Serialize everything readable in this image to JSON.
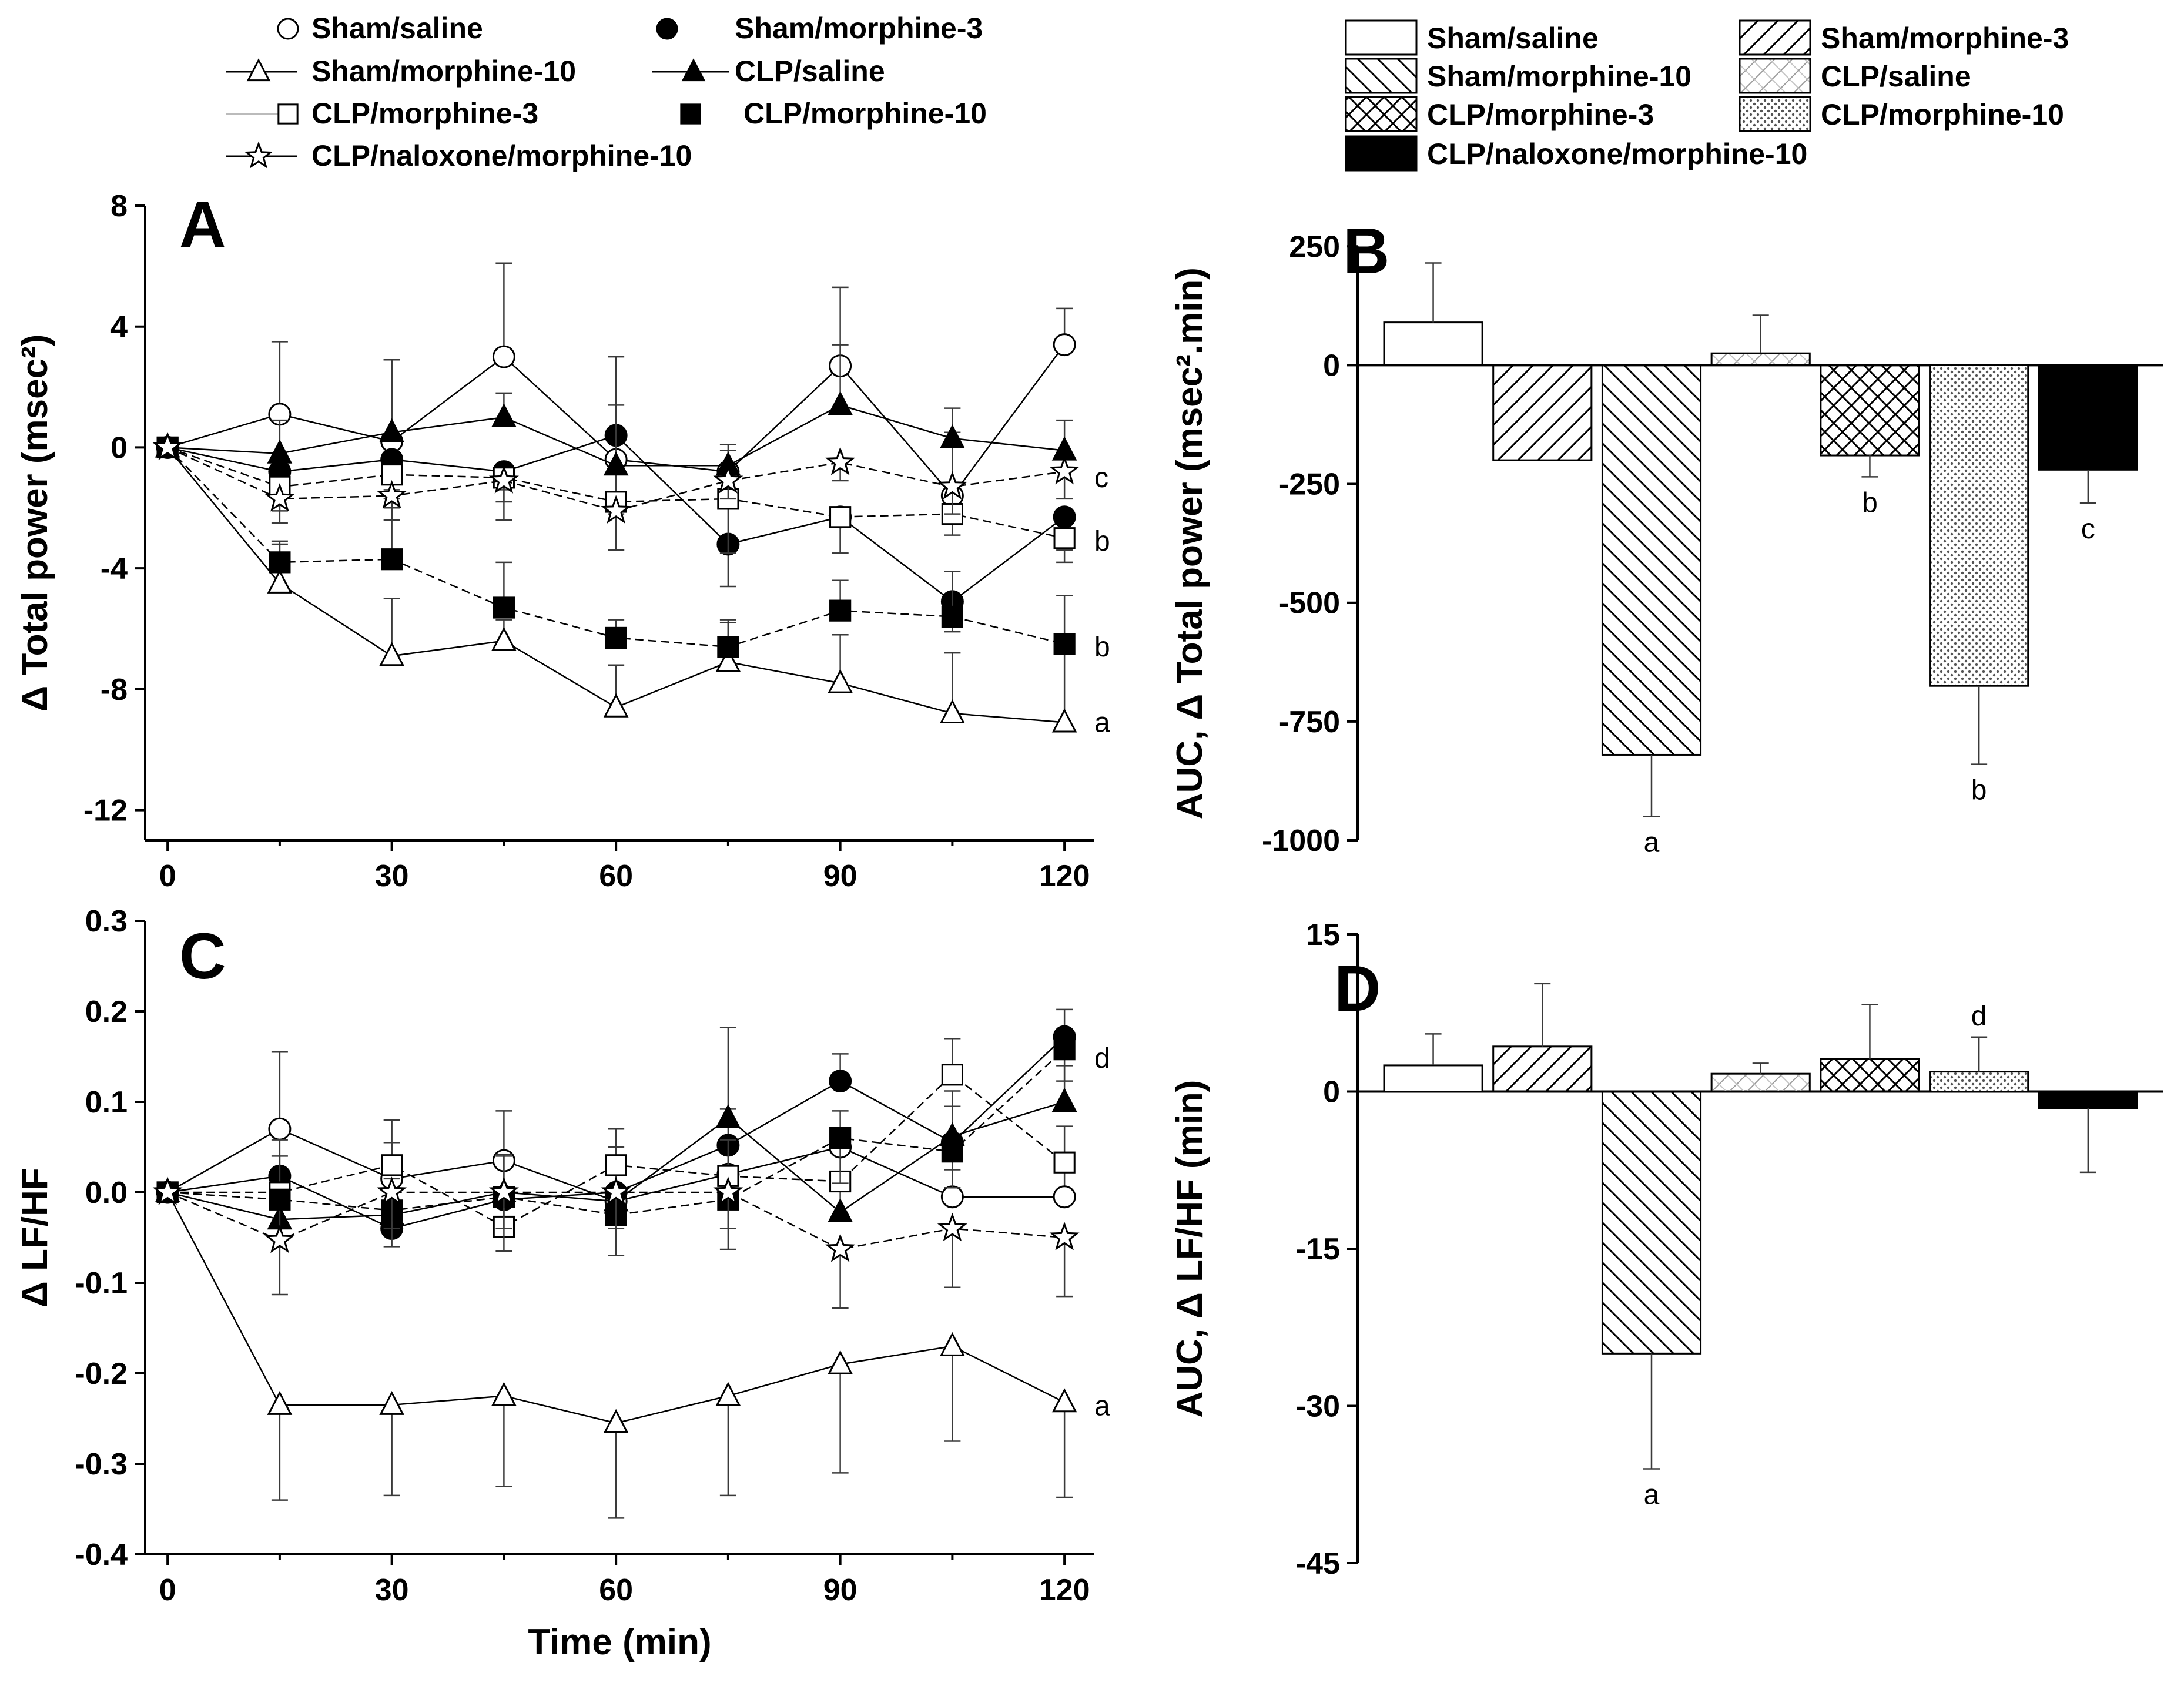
{
  "colors": {
    "ink": "#000000",
    "background": "#ffffff",
    "errorbar": "#3a3a3a"
  },
  "legend_left": {
    "entries": [
      {
        "label": "Sham/saline",
        "marker": "circle-open",
        "dash": "none"
      },
      {
        "label": "Sham/morphine-3",
        "marker": "circle-filled",
        "dash": "none"
      },
      {
        "label": "Sham/morphine-10",
        "marker": "triangle-open",
        "dash": "solid"
      },
      {
        "label": "CLP/saline",
        "marker": "triangle-filled",
        "dash": "solid"
      },
      {
        "label": "CLP/morphine-3",
        "marker": "square-open",
        "dash": "none"
      },
      {
        "label": "CLP/morphine-10",
        "marker": "square-filled",
        "dash": "none"
      },
      {
        "label": "CLP/naloxone/morphine-10",
        "marker": "star-open",
        "dash": "solid"
      }
    ]
  },
  "legend_right": {
    "entries": [
      {
        "label": "Sham/saline",
        "pattern": "none"
      },
      {
        "label": "Sham/morphine-3",
        "pattern": "hatch-fwd"
      },
      {
        "label": "Sham/morphine-10",
        "pattern": "hatch-back"
      },
      {
        "label": "CLP/saline",
        "pattern": "hatch-light"
      },
      {
        "label": "CLP/morphine-3",
        "pattern": "crosshatch"
      },
      {
        "label": "CLP/morphine-10",
        "pattern": "dots"
      },
      {
        "label": "CLP/naloxone/morphine-10",
        "pattern": "solid"
      }
    ]
  },
  "chart_data": [
    {
      "panel": "A",
      "type": "line",
      "xlabel": "",
      "ylabel": "Δ Total power (msec²)",
      "x": [
        0,
        15,
        30,
        45,
        60,
        75,
        90,
        105,
        120
      ],
      "xticks": [
        "0",
        "30",
        "60",
        "90",
        "120"
      ],
      "xtick_values": [
        0,
        30,
        60,
        90,
        120
      ],
      "xlim": [
        -3,
        124
      ],
      "ylim": [
        -13,
        8
      ],
      "yticks": [
        "8",
        "4",
        "0",
        "-4",
        "-8",
        "-12"
      ],
      "ytick_values": [
        8,
        4,
        0,
        -4,
        -8,
        -12
      ],
      "series": [
        {
          "name": "Sham/saline",
          "values": [
            0,
            1.1,
            0.2,
            3.0,
            -0.4,
            -0.8,
            2.7,
            -1.6,
            3.4
          ],
          "err": [
            0,
            2.4,
            2.7,
            3.1,
            3.4,
            0.7,
            2.6,
            2.1,
            1.2
          ],
          "dir": 1
        },
        {
          "name": "Sham/morphine-3",
          "values": [
            0,
            -0.8,
            -0.4,
            -0.8,
            0.4,
            -3.2,
            -2.3,
            -5.1,
            -2.3
          ],
          "err": [
            0,
            0.9,
            1.0,
            0.6,
            2.6,
            1.4,
            1.2,
            1.0,
            1.1
          ],
          "dir": -1
        },
        {
          "name": "Sham/morphine-10",
          "values": [
            0,
            -4.5,
            -6.9,
            -6.4,
            -8.6,
            -7.1,
            -7.8,
            -8.8,
            -9.1
          ],
          "err": [
            0,
            1.3,
            1.9,
            0.7,
            1.4,
            1.3,
            1.6,
            2.0,
            2.7
          ],
          "dir": 1
        },
        {
          "name": "CLP/saline",
          "values": [
            0,
            -0.2,
            0.5,
            1.0,
            -0.6,
            -0.6,
            1.4,
            0.3,
            -0.1
          ],
          "err": [
            0,
            1.1,
            2.4,
            0.8,
            2.0,
            0.7,
            2.0,
            1.0,
            1.0
          ],
          "dir": 1
        },
        {
          "name": "CLP/morphine-3",
          "values": [
            0,
            -1.3,
            -0.9,
            -1.0,
            -1.8,
            -1.7,
            -2.3,
            -2.2,
            -3.0
          ],
          "err": [
            0,
            0.8,
            1.1,
            0.8,
            1.6,
            1.8,
            1.2,
            0.7,
            0.8
          ],
          "dir": -1
        },
        {
          "name": "CLP/morphine-10",
          "values": [
            0,
            -3.8,
            -3.7,
            -5.3,
            -6.3,
            -6.6,
            -5.4,
            -5.6,
            -6.5
          ],
          "err": [
            0,
            0.7,
            2.0,
            1.5,
            0.6,
            0.9,
            1.0,
            1.5,
            1.6
          ],
          "dir": 1
        },
        {
          "name": "CLP/naloxone/morphine-10",
          "values": [
            0,
            -1.7,
            -1.6,
            -1.1,
            -2.1,
            -1.1,
            -0.5,
            -1.3,
            -0.8
          ],
          "err": [
            0,
            0.8,
            0.8,
            1.3,
            1.3,
            0.6,
            0.6,
            0.9,
            0.9
          ],
          "dir": -1
        }
      ],
      "annotations": [
        {
          "text": "c",
          "x": 124,
          "y": -1.0
        },
        {
          "text": "b",
          "x": 124,
          "y": -3.1
        },
        {
          "text": "b",
          "x": 124,
          "y": -6.6
        },
        {
          "text": "a",
          "x": 124,
          "y": -9.1
        }
      ]
    },
    {
      "panel": "B",
      "type": "bar",
      "ylabel": "AUC, Δ Total power (msec².min)",
      "ylim": [
        -1000,
        280
      ],
      "yticks": [
        "250",
        "0",
        "-250",
        "-500",
        "-750",
        "-1000"
      ],
      "ytick_values": [
        250,
        0,
        -250,
        -500,
        -750,
        -1000
      ],
      "categories": [
        "Sham/saline",
        "Sham/morphine-3",
        "Sham/morphine-10",
        "CLP/saline",
        "CLP/morphine-3",
        "CLP/morphine-10",
        "CLP/naloxone/morphine-10"
      ],
      "values": [
        90,
        -200,
        -820,
        25,
        -190,
        -675,
        -220
      ],
      "errors": [
        125,
        0,
        130,
        80,
        45,
        165,
        70
      ],
      "labels": [
        "",
        "",
        "a",
        "",
        "b",
        "b",
        "c"
      ]
    },
    {
      "panel": "C",
      "type": "line",
      "xlabel": "Time (min)",
      "ylabel": "Δ LF/HF",
      "x": [
        0,
        15,
        30,
        45,
        60,
        75,
        90,
        105,
        120
      ],
      "xticks": [
        "0",
        "30",
        "60",
        "90",
        "120"
      ],
      "xtick_values": [
        0,
        30,
        60,
        90,
        120
      ],
      "xlim": [
        -3,
        124
      ],
      "ylim": [
        -0.4,
        0.3
      ],
      "yticks": [
        "0.3",
        "0.2",
        "0.1",
        "0.0",
        "-0.1",
        "-0.2",
        "-0.3",
        "-0.4"
      ],
      "ytick_values": [
        0.3,
        0.2,
        0.1,
        0.0,
        -0.1,
        -0.2,
        -0.3,
        -0.4
      ],
      "series": [
        {
          "name": "Sham/saline",
          "values": [
            0,
            0.07,
            0.015,
            0.035,
            -0.01,
            0.02,
            0.05,
            -0.005,
            -0.005
          ],
          "err": [
            0,
            0.085,
            0.04,
            0.055,
            0.04,
            0.04,
            0.04,
            0.03,
            0.03
          ],
          "dir": 1
        },
        {
          "name": "Sham/morphine-3",
          "values": [
            0,
            0.018,
            -0.04,
            -0.008,
            0.0,
            0.052,
            0.123,
            0.055,
            0.172
          ],
          "err": [
            0,
            0.04,
            0.04,
            0.05,
            0.05,
            0.04,
            0.03,
            0.04,
            0.03
          ],
          "dir": 1
        },
        {
          "name": "Sham/morphine-10",
          "values": [
            0,
            -0.235,
            -0.235,
            -0.225,
            -0.255,
            -0.225,
            -0.19,
            -0.17,
            -0.232
          ],
          "err": [
            0,
            0.105,
            0.1,
            0.1,
            0.105,
            0.11,
            0.12,
            0.105,
            0.105
          ],
          "dir": -1
        },
        {
          "name": "CLP/saline",
          "values": [
            0,
            -0.03,
            -0.025,
            0.0,
            -0.01,
            0.082,
            -0.022,
            0.062,
            0.1
          ],
          "err": [
            0,
            0.04,
            0.04,
            0.04,
            0.04,
            0.1,
            0.04,
            0.05,
            0.04
          ],
          "dir": 1
        },
        {
          "name": "CLP/morphine-3",
          "values": [
            0,
            0.0,
            0.03,
            -0.038,
            0.03,
            0.018,
            0.012,
            0.13,
            0.033
          ],
          "err": [
            0,
            0.04,
            0.05,
            0.04,
            0.04,
            0.04,
            0.05,
            0.04,
            0.04
          ],
          "dir": 1
        },
        {
          "name": "CLP/morphine-10",
          "values": [
            0,
            -0.008,
            -0.02,
            -0.005,
            -0.025,
            -0.008,
            0.06,
            0.045,
            0.158
          ],
          "err": [
            0,
            0.04,
            0.04,
            0.06,
            0.045,
            0.055,
            0.05,
            0.04,
            0.035
          ],
          "dir": -1
        },
        {
          "name": "CLP/naloxone/morphine-10",
          "values": [
            0,
            -0.053,
            0.0,
            0.0,
            0.0,
            0.0,
            -0.063,
            -0.04,
            -0.05
          ],
          "err": [
            0,
            0.06,
            0.04,
            0.04,
            0.04,
            0.04,
            0.065,
            0.065,
            0.065
          ],
          "dir": -1
        }
      ],
      "annotations": [
        {
          "text": "d",
          "x": 124,
          "y": 0.148
        },
        {
          "text": "a",
          "x": 124,
          "y": -0.236
        }
      ]
    },
    {
      "panel": "D",
      "type": "bar",
      "ylabel": "AUC, Δ LF/HF (min)",
      "ylim": [
        -45,
        15
      ],
      "yticks": [
        "15",
        "0",
        "-15",
        "-30",
        "-45"
      ],
      "ytick_values": [
        15,
        0,
        -15,
        -30,
        -45
      ],
      "categories": [
        "Sham/saline",
        "Sham/morphine-3",
        "Sham/morphine-10",
        "CLP/saline",
        "CLP/morphine-3",
        "CLP/morphine-10",
        "CLP/naloxone/morphine-10"
      ],
      "values": [
        2.5,
        4.3,
        -25.0,
        1.7,
        3.1,
        1.9,
        -1.6
      ],
      "errors": [
        3.0,
        6.0,
        11.0,
        1.0,
        5.2,
        3.3,
        6.1
      ],
      "labels": [
        "",
        "",
        "a",
        "",
        "",
        "d",
        ""
      ]
    }
  ]
}
